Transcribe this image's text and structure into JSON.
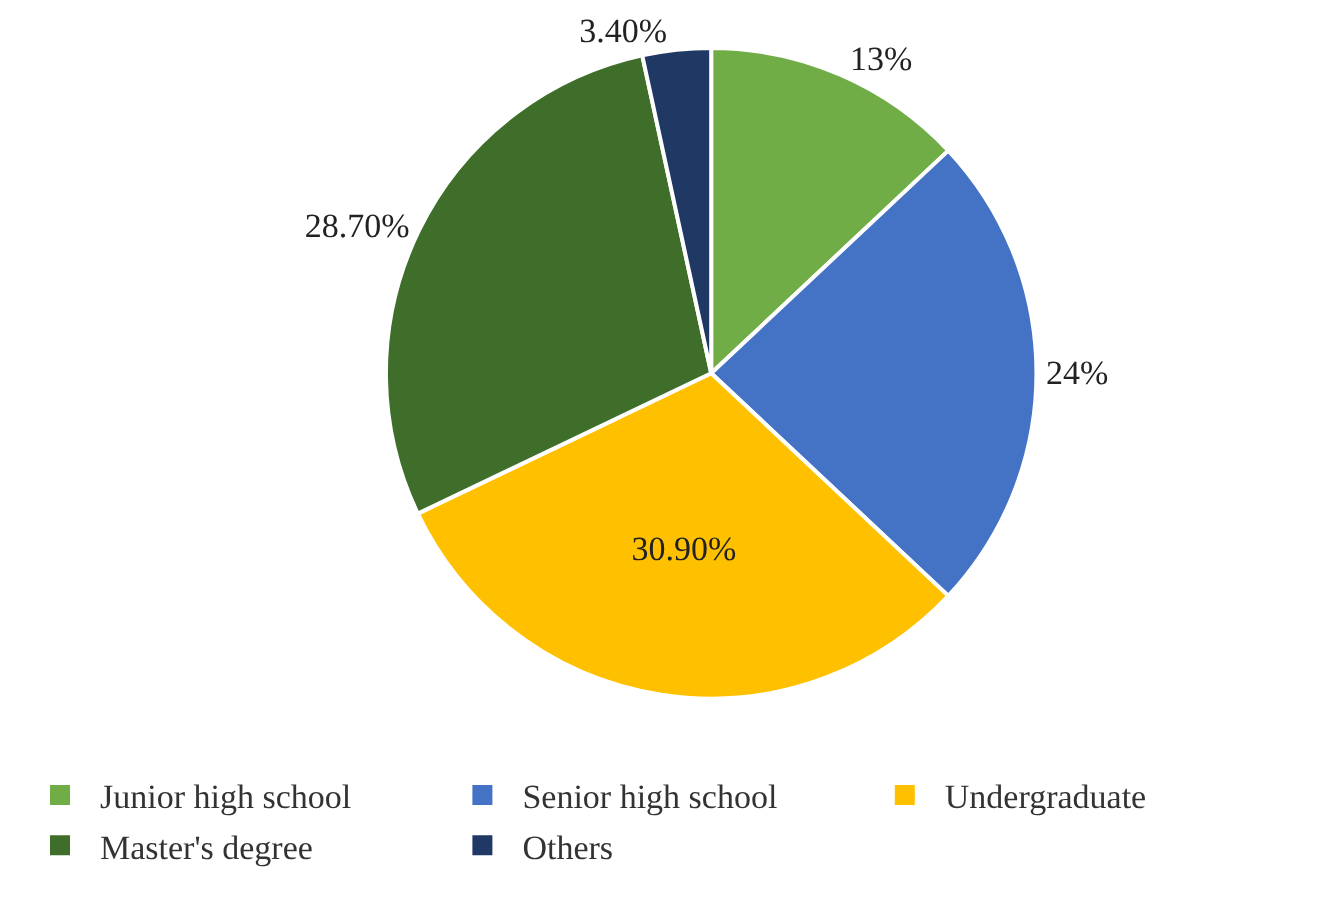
{
  "chart_data": {
    "type": "pie",
    "categories": [
      "Junior high school",
      "Senior high school",
      "Undergraduate",
      "Master's degree",
      "Others"
    ],
    "values": [
      13,
      24,
      30.9,
      28.7,
      3.4
    ],
    "value_labels": [
      "13%",
      "24%",
      "30.90%",
      "28.70%",
      "3.40%"
    ],
    "colors": [
      "#70ad47",
      "#4472c4",
      "#ffc000",
      "#3f6e2a",
      "#203864"
    ],
    "legend": "bottom"
  }
}
